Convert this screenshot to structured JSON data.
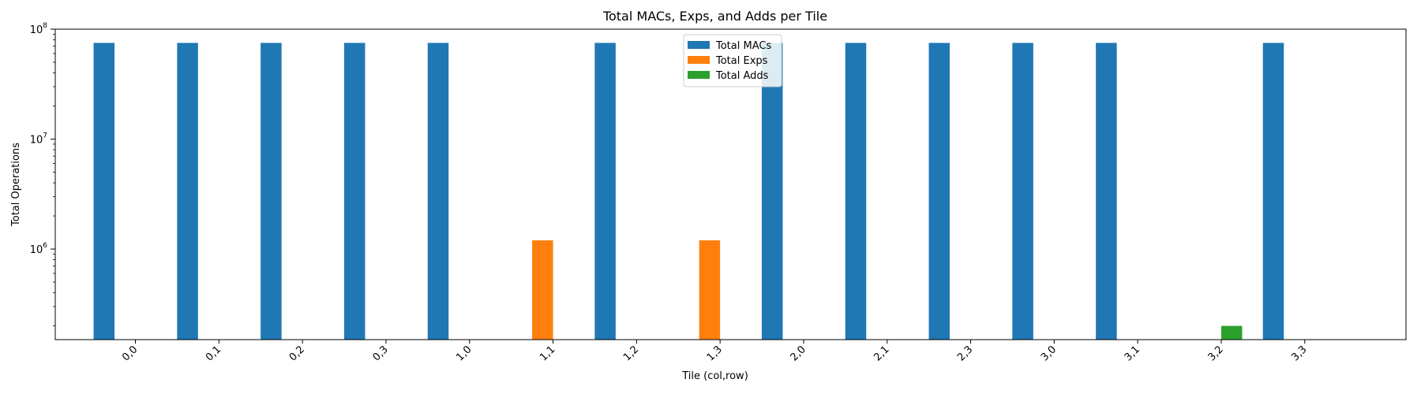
{
  "chart_data": {
    "type": "bar",
    "title": "Total MACs, Exps, and Adds per Tile",
    "xlabel": "Tile (col,row)",
    "ylabel": "Total Operations",
    "yscale": "log",
    "ylim": [
      150000,
      100000000
    ],
    "yticks": [
      {
        "value": 1000000,
        "base": "10",
        "exp": "6"
      },
      {
        "value": 10000000,
        "base": "10",
        "exp": "7"
      },
      {
        "value": 100000000,
        "base": "10",
        "exp": "8"
      }
    ],
    "categories": [
      "0,0",
      "0,1",
      "0,2",
      "0,3",
      "1,0",
      "1,1",
      "1,2",
      "1,3",
      "2,0",
      "2,1",
      "2,3",
      "3,0",
      "3,1",
      "3,2",
      "3,3"
    ],
    "series": [
      {
        "name": "Total MACs",
        "color": "#1f77b4",
        "values": [
          75000000,
          75000000,
          75000000,
          75000000,
          75000000,
          0,
          75000000,
          0,
          75000000,
          75000000,
          75000000,
          75000000,
          75000000,
          0,
          75000000
        ]
      },
      {
        "name": "Total Exps",
        "color": "#ff7f0e",
        "values": [
          0,
          0,
          0,
          0,
          0,
          1200000,
          0,
          1200000,
          0,
          0,
          0,
          0,
          0,
          0,
          0
        ]
      },
      {
        "name": "Total Adds",
        "color": "#2ca02c",
        "values": [
          0,
          0,
          0,
          0,
          0,
          0,
          0,
          0,
          0,
          0,
          0,
          0,
          0,
          200000,
          0
        ]
      }
    ],
    "legend_position": "top-center",
    "grid": false
  }
}
